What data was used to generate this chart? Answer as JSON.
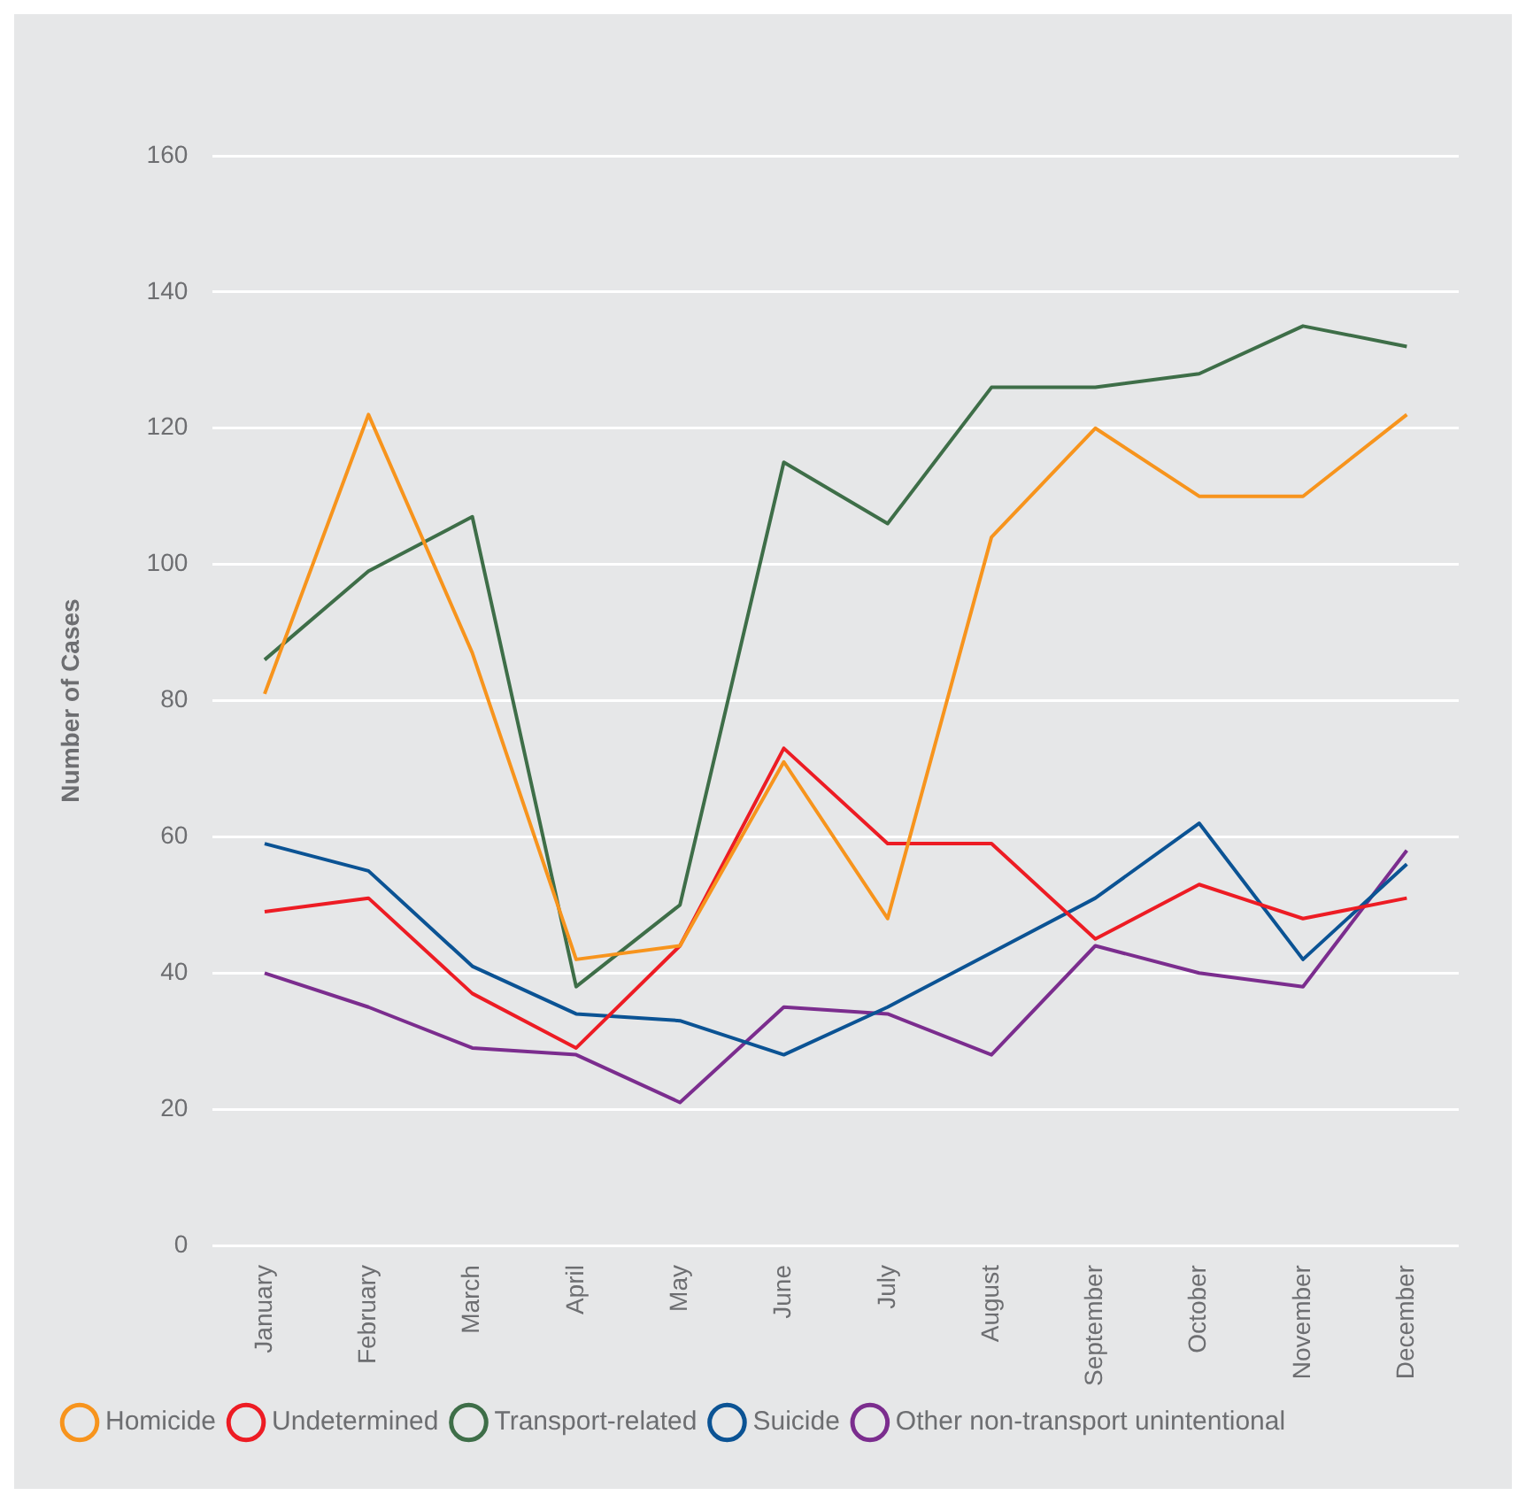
{
  "chart_data": {
    "type": "line",
    "ylabel": "Number of Cases",
    "categories": [
      "January",
      "February",
      "March",
      "April",
      "May",
      "June",
      "July",
      "August",
      "September",
      "October",
      "November",
      "December"
    ],
    "series": [
      {
        "name": "Homicide",
        "color": "#f7941d",
        "values": [
          81,
          122,
          87,
          42,
          44,
          71,
          48,
          104,
          120,
          110,
          110,
          122
        ]
      },
      {
        "name": "Undetermined",
        "color": "#ed1c24",
        "values": [
          49,
          51,
          37,
          29,
          44,
          73,
          59,
          59,
          45,
          53,
          48,
          51
        ]
      },
      {
        "name": "Transport-related",
        "color": "#3e6e48",
        "values": [
          86,
          99,
          107,
          38,
          50,
          115,
          106,
          126,
          126,
          128,
          135,
          132
        ]
      },
      {
        "name": "Suicide",
        "color": "#0b5394",
        "values": [
          59,
          55,
          41,
          34,
          33,
          28,
          35,
          43,
          51,
          62,
          42,
          56
        ]
      },
      {
        "name": "Other non-transport unintentional",
        "color": "#7b2d8e",
        "values": [
          40,
          35,
          29,
          28,
          21,
          35,
          34,
          28,
          44,
          40,
          38,
          58
        ]
      }
    ],
    "ylim": [
      0,
      160
    ],
    "yticks": [
      0,
      20,
      40,
      60,
      80,
      100,
      120,
      140,
      160
    ],
    "grid": "y",
    "legend": "bottom",
    "marker": "none",
    "line_style": "solid"
  }
}
